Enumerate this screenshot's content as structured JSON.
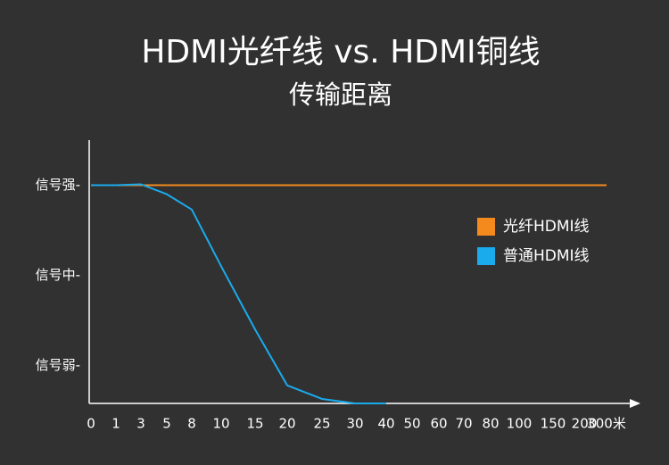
{
  "chart_data": {
    "type": "line",
    "title": "HDMI光纤线  vs. HDMI铜线",
    "subtitle": "传输距离",
    "categories": [
      "0",
      "1",
      "3",
      "5",
      "8",
      "10",
      "15",
      "20",
      "25",
      "30",
      "40",
      "50",
      "60",
      "70",
      "80",
      "100",
      "150",
      "200",
      "300米"
    ],
    "series": [
      {
        "name": "光纤HDMI线",
        "color": "#f48a1e",
        "values": [
          3,
          3,
          3,
          3,
          3,
          3,
          3,
          3,
          3,
          3,
          3,
          3,
          3,
          3,
          3,
          3,
          3,
          3,
          3
        ]
      },
      {
        "name": "普通HDMI线",
        "color": "#1aabec",
        "values": [
          3,
          3,
          3.01,
          2.9,
          2.73,
          2.1,
          1.4,
          0.78,
          0.63,
          0.58,
          0.58,
          null,
          null,
          null,
          null,
          null,
          null,
          null,
          null
        ]
      }
    ],
    "ylim": [
      0.58,
      3.5
    ],
    "yticks": [
      {
        "value": 3,
        "label": "信号强-"
      },
      {
        "value": 2,
        "label": "信号中-"
      },
      {
        "value": 1,
        "label": "信号弱-"
      }
    ],
    "legend": "right"
  }
}
